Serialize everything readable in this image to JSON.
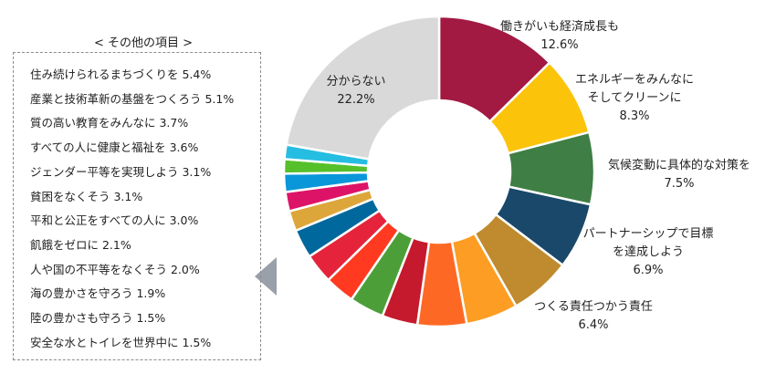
{
  "colors": {
    "unknown": "#d9d9d9",
    "pointer": "#9aa0aa",
    "box_border": "#8c8c8c"
  },
  "other": {
    "title": "< その他の項目 >",
    "items": [
      "住み続けられるまちづくりを 5.4%",
      "産業と技術革新の基盤をつくろう 5.1%",
      "質の高い教育をみんなに 3.7%",
      "すべての人に健康と福祉を 3.6%",
      "ジェンダー平等を実現しよう 3.1%",
      "貧困をなくそう 3.1%",
      "平和と公正をすべての人に 3.0%",
      "飢餓をゼロに 2.1%",
      "人や国の不平等をなくそう 2.0%",
      "海の豊かさを守ろう 1.9%",
      "陸の豊かさも守ろう 1.5%",
      "安全な水とトイレを世界中に 1.5%"
    ]
  },
  "chart_data": {
    "type": "pie",
    "variant": "donut",
    "title": "",
    "unit": "%",
    "slices": [
      {
        "name": "働きがいも経済成長も",
        "value": 12.6,
        "color": "#a21942",
        "labeled": true
      },
      {
        "name": "エネルギーをみんなに そしてクリーンに",
        "value": 8.3,
        "color": "#fcc30b",
        "labeled": true
      },
      {
        "name": "気候変動に具体的な対策を",
        "value": 7.5,
        "color": "#3f7e44",
        "labeled": true
      },
      {
        "name": "パートナーシップで目標を達成しよう",
        "value": 6.9,
        "color": "#19486a",
        "labeled": true
      },
      {
        "name": "つくる責任つかう責任",
        "value": 6.4,
        "color": "#bf8b2e",
        "labeled": true
      },
      {
        "name": "住み続けられるまちづくりを",
        "value": 5.4,
        "color": "#fd9d24",
        "labeled": false
      },
      {
        "name": "産業と技術革新の基盤をつくろう",
        "value": 5.1,
        "color": "#fd6925",
        "labeled": false
      },
      {
        "name": "質の高い教育をみんなに",
        "value": 3.7,
        "color": "#c5192d",
        "labeled": false
      },
      {
        "name": "すべての人に健康と福祉を",
        "value": 3.6,
        "color": "#4c9f38",
        "labeled": false
      },
      {
        "name": "ジェンダー平等を実現しよう",
        "value": 3.1,
        "color": "#ff3a21",
        "labeled": false
      },
      {
        "name": "貧困をなくそう",
        "value": 3.1,
        "color": "#e5243b",
        "labeled": false
      },
      {
        "name": "平和と公正をすべての人に",
        "value": 3.0,
        "color": "#00689d",
        "labeled": false
      },
      {
        "name": "飢餓をゼロに",
        "value": 2.1,
        "color": "#dda63a",
        "labeled": false
      },
      {
        "name": "人や国の不平等をなくそう",
        "value": 2.0,
        "color": "#dd1367",
        "labeled": false
      },
      {
        "name": "海の豊かさを守ろう",
        "value": 1.9,
        "color": "#0a97d9",
        "labeled": false
      },
      {
        "name": "陸の豊かさも守ろう",
        "value": 1.5,
        "color": "#56c02b",
        "labeled": false
      },
      {
        "name": "安全な水とトイレを世界中に",
        "value": 1.5,
        "color": "#26bde2",
        "labeled": false
      },
      {
        "name": "分からない",
        "value": 22.2,
        "color": "#d9d9d9",
        "labeled": true
      }
    ],
    "labels": [
      {
        "lines": [
          "働きがいも経済成長も",
          "12.6%"
        ]
      },
      {
        "lines": [
          "エネルギーをみんなに",
          "そしてクリーンに",
          "8.3%"
        ]
      },
      {
        "lines": [
          "気候変動に具体的な対策を",
          "7.5%"
        ]
      },
      {
        "lines": [
          "パートナーシップで目標",
          "を達成しよう",
          "6.9%"
        ]
      },
      {
        "lines": [
          "つくる責任つかう責任",
          "6.4%"
        ]
      },
      {
        "lines": [
          "分からない",
          "22.2%"
        ]
      }
    ]
  }
}
